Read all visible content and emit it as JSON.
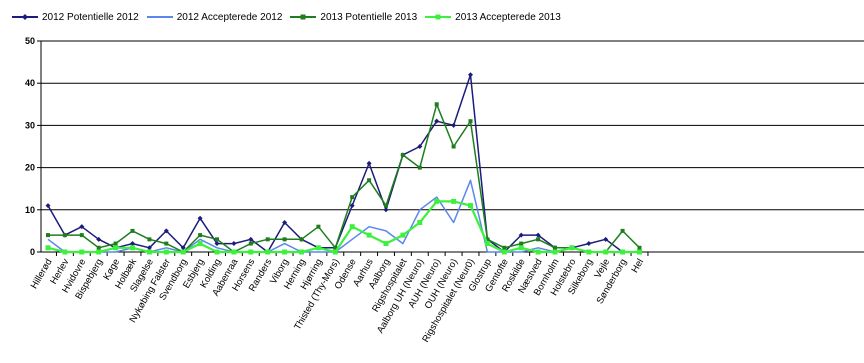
{
  "chart_data": {
    "type": "line",
    "ylim": [
      0,
      50
    ],
    "yticks": [
      0,
      10,
      20,
      30,
      40,
      50
    ],
    "grid": "horizontal",
    "legend_position": "top-left",
    "categories": [
      "Hillerød",
      "Herlev",
      "Hvidovre",
      "Bispebjerg",
      "Køge",
      "Holbæk",
      "Slagelse",
      "Nykøbing Falster",
      "Svendborg",
      "Esbjerg",
      "Kolding",
      "Aabenraa",
      "Horsens",
      "Randers",
      "Viborg",
      "Herning",
      "Hjørring",
      "Thisted (Thy-Mors)",
      "Odense",
      "Aarhus",
      "Aalborg",
      "Rigshospitalet",
      "Aalborg UH (Neuro)",
      "AUH (Neuro)",
      "OUH (Neuro)",
      "Rigshospitalet (Neur0)",
      "Glostrup",
      "Gentofte",
      "Roskilde",
      "Næstved",
      "Bornholm",
      "Holstebro",
      "Silkeborg",
      "Vejle",
      "Sønderborg",
      "Hel"
    ],
    "series": [
      {
        "name": "2012 Potentielle 2012",
        "color": "#1c1c7c",
        "marker": "diamond",
        "values": [
          11,
          4,
          6,
          3,
          1,
          2,
          1,
          5,
          1,
          8,
          2,
          2,
          3,
          0,
          7,
          3,
          1,
          1,
          11,
          21,
          10,
          23,
          25,
          31,
          30,
          42,
          3,
          0,
          4,
          4,
          1,
          1,
          2,
          3,
          0,
          0
        ]
      },
      {
        "name": "2012 Accepterede 2012",
        "color": "#5a86ee",
        "marker": "none",
        "values": [
          3,
          0,
          0,
          0,
          0,
          1,
          0,
          1,
          0,
          3,
          1,
          0,
          0,
          0,
          2,
          0,
          0,
          0,
          3,
          6,
          5,
          2,
          10,
          13,
          7,
          17,
          0,
          0,
          0,
          1,
          0,
          1,
          0,
          0,
          0,
          0
        ]
      },
      {
        "name": "2013 Potentielle 2013",
        "color": "#1e7e1e",
        "marker": "square",
        "values": [
          4,
          4,
          4,
          1,
          2,
          5,
          3,
          2,
          0,
          4,
          3,
          0,
          2,
          3,
          3,
          3,
          6,
          1,
          13,
          17,
          11,
          23,
          20,
          35,
          25,
          31,
          3,
          1,
          2,
          3,
          1,
          1,
          0,
          0,
          5,
          1
        ]
      },
      {
        "name": "2013 Accepterede 2013",
        "color": "#3ef03e",
        "marker": "square",
        "values": [
          1,
          0,
          0,
          0,
          1,
          1,
          0,
          0,
          0,
          2,
          0,
          0,
          0,
          0,
          0,
          0,
          1,
          0,
          6,
          4,
          2,
          4,
          7,
          12,
          12,
          11,
          2,
          0,
          1,
          0,
          0,
          1,
          0,
          0,
          0,
          0
        ]
      }
    ]
  }
}
